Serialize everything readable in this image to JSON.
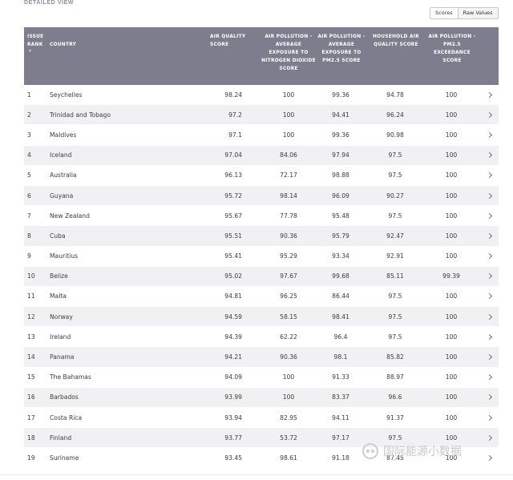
{
  "section_title": "DETAILED VIEW",
  "toggle": {
    "scores_label": "Scores",
    "raw_label": "Raw Values",
    "active": "Scores"
  },
  "columns": {
    "rank": "ISSUE RANK",
    "country": "COUNTRY",
    "aq": "AIR QUALITY SCORE",
    "no2": "AIR POLLUTION - AVERAGE EXPOSURE TO NITROGEN DIOXIDE SCORE",
    "pm": "AIR POLLUTION - AVERAGE EXPOSURE TO PM2.5 SCORE",
    "house": "HOUSEHOLD AIR QUALITY SCORE",
    "exc": "AIR POLLUTION - PM2.5 EXCEEDANCE SCORE"
  },
  "rows": [
    {
      "rank": "1",
      "country": "Seychelles",
      "aq": "98.24",
      "no2": "100",
      "pm": "99.36",
      "house": "94.78",
      "exc": "100"
    },
    {
      "rank": "2",
      "country": "Trinidad and Tobago",
      "aq": "97.2",
      "no2": "100",
      "pm": "94.41",
      "house": "96.24",
      "exc": "100"
    },
    {
      "rank": "3",
      "country": "Maldives",
      "aq": "97.1",
      "no2": "100",
      "pm": "99.36",
      "house": "90.98",
      "exc": "100"
    },
    {
      "rank": "4",
      "country": "Iceland",
      "aq": "97.04",
      "no2": "84.06",
      "pm": "97.94",
      "house": "97.5",
      "exc": "100"
    },
    {
      "rank": "5",
      "country": "Australia",
      "aq": "96.13",
      "no2": "72.17",
      "pm": "98.88",
      "house": "97.5",
      "exc": "100"
    },
    {
      "rank": "6",
      "country": "Guyana",
      "aq": "95.72",
      "no2": "98.14",
      "pm": "96.09",
      "house": "90.27",
      "exc": "100"
    },
    {
      "rank": "7",
      "country": "New Zealand",
      "aq": "95.67",
      "no2": "77.78",
      "pm": "95.48",
      "house": "97.5",
      "exc": "100"
    },
    {
      "rank": "8",
      "country": "Cuba",
      "aq": "95.51",
      "no2": "90.36",
      "pm": "95.79",
      "house": "92.47",
      "exc": "100"
    },
    {
      "rank": "9",
      "country": "Mauritius",
      "aq": "95.41",
      "no2": "95.29",
      "pm": "93.34",
      "house": "92.91",
      "exc": "100"
    },
    {
      "rank": "10",
      "country": "Belize",
      "aq": "95.02",
      "no2": "97.67",
      "pm": "99.68",
      "house": "85.11",
      "exc": "99.39"
    },
    {
      "rank": "11",
      "country": "Malta",
      "aq": "94.81",
      "no2": "96.25",
      "pm": "86.44",
      "house": "97.5",
      "exc": "100"
    },
    {
      "rank": "12",
      "country": "Norway",
      "aq": "94.59",
      "no2": "58.15",
      "pm": "98.41",
      "house": "97.5",
      "exc": "100"
    },
    {
      "rank": "13",
      "country": "Ireland",
      "aq": "94.39",
      "no2": "62.22",
      "pm": "96.4",
      "house": "97.5",
      "exc": "100"
    },
    {
      "rank": "14",
      "country": "Panama",
      "aq": "94.21",
      "no2": "90.36",
      "pm": "98.1",
      "house": "85.82",
      "exc": "100"
    },
    {
      "rank": "15",
      "country": "The Bahamas",
      "aq": "94.09",
      "no2": "100",
      "pm": "91.33",
      "house": "88.97",
      "exc": "100"
    },
    {
      "rank": "16",
      "country": "Barbados",
      "aq": "93.99",
      "no2": "100",
      "pm": "83.37",
      "house": "96.6",
      "exc": "100"
    },
    {
      "rank": "17",
      "country": "Costa Rica",
      "aq": "93.94",
      "no2": "82.95",
      "pm": "94.11",
      "house": "91.37",
      "exc": "100"
    },
    {
      "rank": "18",
      "country": "Finland",
      "aq": "93.77",
      "no2": "53.72",
      "pm": "97.17",
      "house": "97.5",
      "exc": "100"
    },
    {
      "rank": "19",
      "country": "Suriname",
      "aq": "93.45",
      "no2": "98.61",
      "pm": "91.18",
      "house": "87.45",
      "exc": "100"
    }
  ],
  "watermark": "国际能源小数据",
  "icons": {
    "sort": "sort-desc-icon",
    "row_arrow": "chevron-right-icon"
  }
}
